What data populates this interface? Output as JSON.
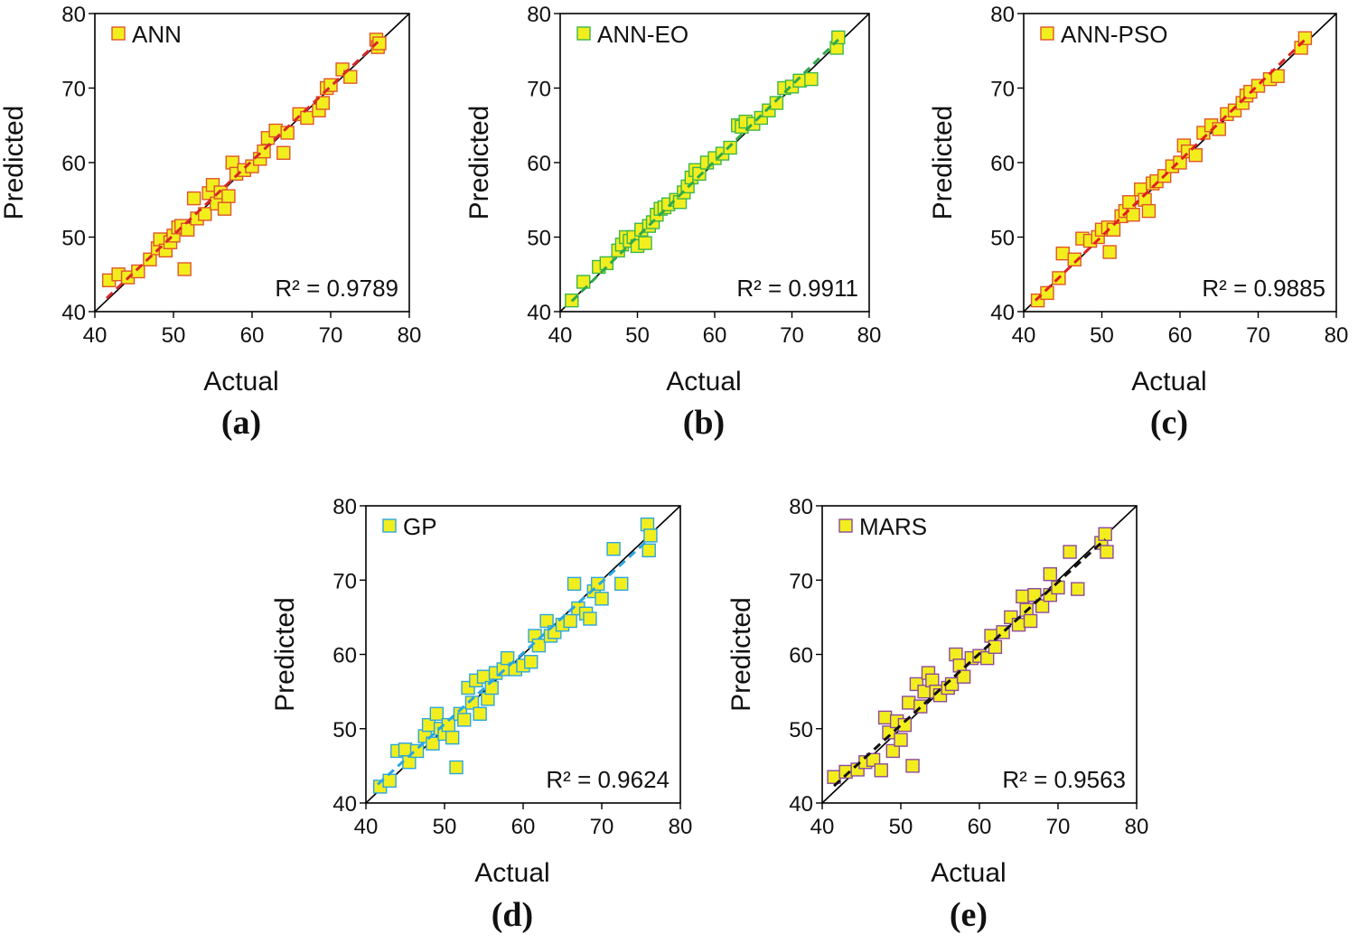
{
  "colors": {
    "marker_fill": "#f2ee1e",
    "ANN": "#e0552a",
    "ANN-EO": "#3cb64a",
    "ANN-PSO": "#e0552a",
    "GP": "#2aa6df",
    "MARS": "#8c4a9c",
    "fit_ANN": "#d6282a",
    "fit_ANN-EO": "#2fa84a",
    "fit_ANN-PSO": "#e02020",
    "fit_GP": "#2aa6df",
    "fit_MARS": "#111111"
  },
  "chart_data": [
    {
      "type": "scatter",
      "id": "a",
      "panel_label": "(a)",
      "legend": "ANN",
      "r2_text": "R² = 0.9789",
      "xlabel": "Actual",
      "ylabel": "Predicted",
      "xlim": [
        40,
        80
      ],
      "ylim": [
        40,
        80
      ],
      "xticks": [
        "40",
        "50",
        "60",
        "70",
        "80"
      ],
      "yticks": [
        "40",
        "50",
        "60",
        "70",
        "80"
      ],
      "fit": [
        [
          41.5,
          41.8
        ],
        [
          76,
          76.2
        ]
      ],
      "points": [
        [
          41.8,
          44.2
        ],
        [
          43,
          45
        ],
        [
          44.2,
          44.6
        ],
        [
          45.5,
          45.4
        ],
        [
          47,
          47
        ],
        [
          48,
          48.5
        ],
        [
          48.3,
          49.7
        ],
        [
          49,
          48.2
        ],
        [
          49.6,
          49.3
        ],
        [
          50,
          50.2
        ],
        [
          50.6,
          51.3
        ],
        [
          51,
          51.5
        ],
        [
          51.4,
          45.7
        ],
        [
          51.8,
          51
        ],
        [
          52.6,
          55.2
        ],
        [
          53,
          52.5
        ],
        [
          54,
          53.1
        ],
        [
          54.5,
          55.9
        ],
        [
          55,
          57
        ],
        [
          55.5,
          54.5
        ],
        [
          56,
          56
        ],
        [
          56.5,
          53.8
        ],
        [
          57,
          55.5
        ],
        [
          57.5,
          60
        ],
        [
          58,
          58.5
        ],
        [
          59,
          59
        ],
        [
          60,
          59.5
        ],
        [
          61,
          60.5
        ],
        [
          61.5,
          61.5
        ],
        [
          62,
          63.3
        ],
        [
          63,
          64.3
        ],
        [
          64,
          61.3
        ],
        [
          64.5,
          64
        ],
        [
          66,
          66.5
        ],
        [
          67,
          66
        ],
        [
          68.5,
          67
        ],
        [
          69,
          68
        ],
        [
          69.5,
          70
        ],
        [
          70,
          70.4
        ],
        [
          71.5,
          72.5
        ],
        [
          72.5,
          71.5
        ],
        [
          75.8,
          76.5
        ],
        [
          76,
          75.5
        ],
        [
          76.2,
          76
        ]
      ]
    },
    {
      "type": "scatter",
      "id": "b",
      "panel_label": "(b)",
      "legend": "ANN-EO",
      "r2_text": "R² = 0.9911",
      "xlabel": "Actual",
      "ylabel": "Predicted",
      "xlim": [
        40,
        80
      ],
      "ylim": [
        40,
        80
      ],
      "xticks": [
        "40",
        "50",
        "60",
        "70",
        "80"
      ],
      "yticks": [
        "40",
        "50",
        "60",
        "70",
        "80"
      ],
      "fit": [
        [
          41.5,
          41.4
        ],
        [
          76,
          76.5
        ]
      ],
      "points": [
        [
          41.5,
          41.5
        ],
        [
          43,
          44
        ],
        [
          45,
          46
        ],
        [
          46,
          46.5
        ],
        [
          47.5,
          48.2
        ],
        [
          48,
          49
        ],
        [
          48.5,
          50
        ],
        [
          49,
          49.5
        ],
        [
          49.5,
          50
        ],
        [
          50,
          48.8
        ],
        [
          50.5,
          51
        ],
        [
          51,
          49.2
        ],
        [
          51.5,
          51.5
        ],
        [
          52,
          52
        ],
        [
          52.5,
          53
        ],
        [
          53,
          53.8
        ],
        [
          53.5,
          54
        ],
        [
          54,
          54.4
        ],
        [
          55,
          55
        ],
        [
          55.5,
          54.7
        ],
        [
          56,
          56
        ],
        [
          56.5,
          56.8
        ],
        [
          57,
          58
        ],
        [
          57.5,
          59
        ],
        [
          58,
          58.5
        ],
        [
          59,
          60
        ],
        [
          60,
          60.6
        ],
        [
          61,
          61.2
        ],
        [
          62,
          62
        ],
        [
          63,
          65
        ],
        [
          63.5,
          64.8
        ],
        [
          64,
          65.5
        ],
        [
          65,
          65.2
        ],
        [
          66,
          66
        ],
        [
          67,
          67
        ],
        [
          68,
          68
        ],
        [
          69,
          70
        ],
        [
          70,
          70.2
        ],
        [
          71,
          71
        ],
        [
          72.5,
          71.2
        ],
        [
          75.8,
          75.4
        ],
        [
          76,
          76.8
        ]
      ]
    },
    {
      "type": "scatter",
      "id": "c",
      "panel_label": "(c)",
      "legend": "ANN-PSO",
      "r2_text": "R² = 0.9885",
      "xlabel": "Actual",
      "ylabel": "Predicted",
      "xlim": [
        40,
        80
      ],
      "ylim": [
        40,
        80
      ],
      "xticks": [
        "40",
        "50",
        "60",
        "70",
        "80"
      ],
      "yticks": [
        "40",
        "50",
        "60",
        "70",
        "80"
      ],
      "fit": [
        [
          41.5,
          41.5
        ],
        [
          76,
          76.5
        ]
      ],
      "points": [
        [
          41.8,
          41.5
        ],
        [
          43,
          42.5
        ],
        [
          44.5,
          44.5
        ],
        [
          45,
          47.8
        ],
        [
          46.5,
          47
        ],
        [
          47.5,
          49.8
        ],
        [
          48.5,
          49.5
        ],
        [
          49.5,
          50
        ],
        [
          50,
          51
        ],
        [
          50.8,
          51.3
        ],
        [
          51,
          48
        ],
        [
          51.5,
          51
        ],
        [
          52.5,
          52.8
        ],
        [
          53,
          53.5
        ],
        [
          53.5,
          54.7
        ],
        [
          54,
          53
        ],
        [
          55,
          56.4
        ],
        [
          55.5,
          55
        ],
        [
          56,
          53.5
        ],
        [
          56.5,
          57.2
        ],
        [
          57,
          57.5
        ],
        [
          58,
          58.2
        ],
        [
          59,
          59.5
        ],
        [
          60,
          60
        ],
        [
          60.5,
          62.3
        ],
        [
          61,
          61.5
        ],
        [
          62,
          61
        ],
        [
          63,
          64
        ],
        [
          64,
          65
        ],
        [
          65,
          64.5
        ],
        [
          66,
          66.5
        ],
        [
          67,
          67
        ],
        [
          68,
          68
        ],
        [
          68.5,
          69
        ],
        [
          69,
          69.5
        ],
        [
          70,
          70.3
        ],
        [
          71.5,
          71.2
        ],
        [
          72.5,
          71.6
        ],
        [
          75.5,
          75.4
        ],
        [
          76,
          76.7
        ]
      ]
    },
    {
      "type": "scatter",
      "id": "d",
      "panel_label": "(d)",
      "legend": "GP",
      "r2_text": "R² = 0.9624",
      "xlabel": "Actual",
      "ylabel": "Predicted",
      "xlim": [
        40,
        80
      ],
      "ylim": [
        40,
        80
      ],
      "xticks": [
        "40",
        "50",
        "60",
        "70",
        "80"
      ],
      "yticks": [
        "40",
        "50",
        "60",
        "70",
        "80"
      ],
      "fit": [
        [
          41.5,
          42.5
        ],
        [
          76,
          75.5
        ]
      ],
      "points": [
        [
          41.8,
          42.2
        ],
        [
          43,
          43
        ],
        [
          44,
          47
        ],
        [
          45,
          47.2
        ],
        [
          45.5,
          45.5
        ],
        [
          46.5,
          47
        ],
        [
          47.5,
          49
        ],
        [
          48,
          50.5
        ],
        [
          48.5,
          48
        ],
        [
          49,
          52
        ],
        [
          49.5,
          50
        ],
        [
          50,
          49.3
        ],
        [
          50.5,
          50.5
        ],
        [
          51,
          48.8
        ],
        [
          51.5,
          44.8
        ],
        [
          52,
          52
        ],
        [
          52.5,
          51.2
        ],
        [
          53,
          55.5
        ],
        [
          53.5,
          53.5
        ],
        [
          54,
          56.5
        ],
        [
          54.5,
          52
        ],
        [
          55,
          57
        ],
        [
          55.5,
          54
        ],
        [
          56,
          55.5
        ],
        [
          56.5,
          57.5
        ],
        [
          57.5,
          58
        ],
        [
          58,
          59.5
        ],
        [
          59,
          58
        ],
        [
          60,
          58.5
        ],
        [
          61,
          59
        ],
        [
          61.5,
          62.5
        ],
        [
          62,
          61.2
        ],
        [
          63,
          64.5
        ],
        [
          63.5,
          62.5
        ],
        [
          64,
          63
        ],
        [
          65,
          64
        ],
        [
          66,
          64.5
        ],
        [
          66.5,
          69.5
        ],
        [
          67,
          66.2
        ],
        [
          68,
          65.5
        ],
        [
          68.5,
          64.8
        ],
        [
          69,
          68.5
        ],
        [
          69.5,
          69.5
        ],
        [
          70,
          67.5
        ],
        [
          71.5,
          74.2
        ],
        [
          72.5,
          69.5
        ],
        [
          75.8,
          77.5
        ],
        [
          76,
          74
        ],
        [
          76.2,
          76
        ]
      ]
    },
    {
      "type": "scatter",
      "id": "e",
      "panel_label": "(e)",
      "legend": "MARS",
      "r2_text": "R² = 0.9563",
      "xlabel": "Actual",
      "ylabel": "Predicted",
      "xlim": [
        40,
        80
      ],
      "ylim": [
        40,
        80
      ],
      "xticks": [
        "40",
        "50",
        "60",
        "70",
        "80"
      ],
      "yticks": [
        "40",
        "50",
        "60",
        "70",
        "80"
      ],
      "fit": [
        [
          41.5,
          42.3
        ],
        [
          76,
          75.5
        ]
      ],
      "points": [
        [
          41.5,
          43.5
        ],
        [
          43,
          44.2
        ],
        [
          44.5,
          44.5
        ],
        [
          45.5,
          45.5
        ],
        [
          46.5,
          45.8
        ],
        [
          47.5,
          44.4
        ],
        [
          48,
          51.5
        ],
        [
          48.5,
          49.5
        ],
        [
          49,
          47
        ],
        [
          49.5,
          51
        ],
        [
          50,
          48.5
        ],
        [
          50.5,
          50.5
        ],
        [
          51,
          53.5
        ],
        [
          51.5,
          45
        ],
        [
          52,
          56
        ],
        [
          52.5,
          53
        ],
        [
          53,
          55
        ],
        [
          53.5,
          57.5
        ],
        [
          54,
          56.5
        ],
        [
          54.5,
          55
        ],
        [
          55,
          54.5
        ],
        [
          56,
          55.5
        ],
        [
          56.5,
          56
        ],
        [
          57,
          60
        ],
        [
          57.5,
          58.5
        ],
        [
          58,
          57
        ],
        [
          59,
          59.5
        ],
        [
          60,
          59.8
        ],
        [
          61,
          59.5
        ],
        [
          61.5,
          62.5
        ],
        [
          62,
          61
        ],
        [
          63,
          63
        ],
        [
          64,
          65
        ],
        [
          65,
          64
        ],
        [
          65.5,
          67.8
        ],
        [
          66,
          66
        ],
        [
          66.5,
          64.5
        ],
        [
          67,
          68
        ],
        [
          68,
          66.5
        ],
        [
          69,
          68
        ],
        [
          69,
          70.8
        ],
        [
          70,
          69
        ],
        [
          71.5,
          73.8
        ],
        [
          72.5,
          68.8
        ],
        [
          75.5,
          75
        ],
        [
          76,
          76.2
        ],
        [
          76.2,
          73.8
        ]
      ]
    }
  ]
}
